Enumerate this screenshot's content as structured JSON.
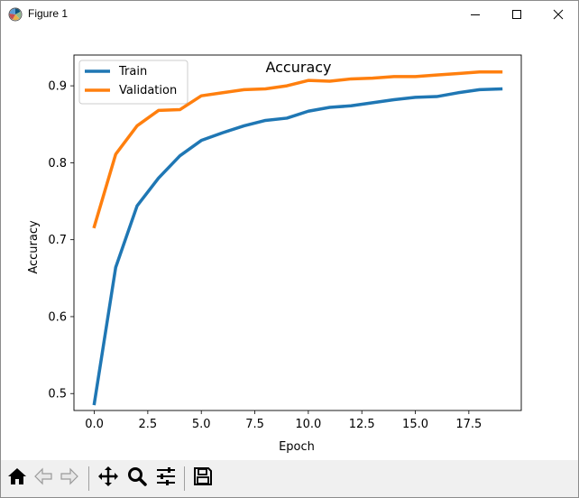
{
  "window": {
    "title": "Figure 1"
  },
  "icons": {
    "app": "matplotlib-logo-icon",
    "minimize": "minimize-icon",
    "maximize": "maximize-icon",
    "close": "close-icon"
  },
  "toolbar": {
    "buttons": [
      {
        "name": "home-button",
        "icon": "home-icon",
        "enabled": true
      },
      {
        "name": "back-button",
        "icon": "arrow-left-icon",
        "enabled": false
      },
      {
        "name": "forward-button",
        "icon": "arrow-right-icon",
        "enabled": false
      },
      {
        "name": "pan-button",
        "icon": "move-icon",
        "enabled": true
      },
      {
        "name": "zoom-button",
        "icon": "magnifier-icon",
        "enabled": true
      },
      {
        "name": "configure-subplots-button",
        "icon": "sliders-icon",
        "enabled": true
      },
      {
        "name": "save-button",
        "icon": "floppy-disk-icon",
        "enabled": true
      }
    ]
  },
  "chart_data": {
    "type": "line",
    "title": "Accuracy",
    "xlabel": "Epoch",
    "ylabel": "Accuracy",
    "xlim": [
      -0.95,
      19.95
    ],
    "ylim": [
      0.478,
      0.94
    ],
    "xticks": [
      0.0,
      2.5,
      5.0,
      7.5,
      10.0,
      12.5,
      15.0,
      17.5
    ],
    "xtick_labels": [
      "0.0",
      "2.5",
      "5.0",
      "7.5",
      "10.0",
      "12.5",
      "15.0",
      "17.5"
    ],
    "yticks": [
      0.5,
      0.6,
      0.7,
      0.8,
      0.9
    ],
    "ytick_labels": [
      "0.5",
      "0.6",
      "0.7",
      "0.8",
      "0.9"
    ],
    "grid": false,
    "legend_position": "top-left",
    "x": [
      0,
      1,
      2,
      3,
      4,
      5,
      6,
      7,
      8,
      9,
      10,
      11,
      12,
      13,
      14,
      15,
      16,
      17,
      18,
      19
    ],
    "series": [
      {
        "name": "Train",
        "color": "#1f77b4",
        "values": [
          0.487,
          0.664,
          0.744,
          0.78,
          0.809,
          0.829,
          0.839,
          0.848,
          0.855,
          0.858,
          0.867,
          0.872,
          0.874,
          0.878,
          0.882,
          0.885,
          0.886,
          0.891,
          0.895,
          0.896
        ]
      },
      {
        "name": "Validation",
        "color": "#ff7f0e",
        "values": [
          0.717,
          0.811,
          0.848,
          0.868,
          0.869,
          0.887,
          0.891,
          0.895,
          0.896,
          0.9,
          0.907,
          0.906,
          0.909,
          0.91,
          0.912,
          0.912,
          0.914,
          0.916,
          0.918,
          0.918
        ]
      }
    ]
  }
}
